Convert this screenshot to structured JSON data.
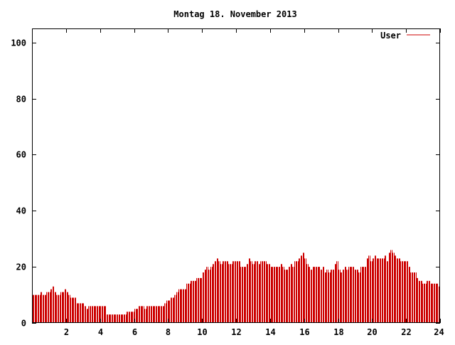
{
  "chart_data": {
    "type": "bar",
    "title": "Montag 18. November 2013",
    "xlabel": "",
    "ylabel": "",
    "xlim": [
      0,
      24
    ],
    "ylim": [
      0,
      105
    ],
    "x_ticks": [
      2,
      4,
      6,
      8,
      10,
      12,
      14,
      16,
      18,
      20,
      22,
      24
    ],
    "y_ticks": [
      0,
      20,
      40,
      60,
      80,
      100
    ],
    "grid": false,
    "legend_position": "top-right",
    "series": [
      {
        "name": "User",
        "color": "#cc0000",
        "values": [
          10,
          10,
          10,
          10,
          10,
          10,
          10,
          10,
          11,
          11,
          10,
          10,
          10,
          10,
          11,
          11,
          11,
          11,
          12,
          12,
          13,
          13,
          11,
          11,
          10,
          10,
          10,
          10,
          11,
          11,
          11,
          11,
          12,
          12,
          11,
          11,
          10,
          10,
          9,
          9,
          9,
          9,
          9,
          9,
          7,
          7,
          7,
          7,
          7,
          7,
          7,
          7,
          6,
          6,
          5,
          5,
          6,
          6,
          6,
          6,
          6,
          6,
          6,
          6,
          6,
          6,
          6,
          6,
          6,
          6,
          6,
          6,
          6,
          6,
          3,
          3,
          3,
          3,
          3,
          3,
          3,
          3,
          3,
          3,
          3,
          3,
          3,
          3,
          3,
          3,
          3,
          3,
          3,
          3,
          4,
          4,
          4,
          4,
          4,
          4,
          4,
          4,
          5,
          5,
          5,
          5,
          6,
          6,
          6,
          6,
          6,
          6,
          5,
          5,
          6,
          6,
          6,
          6,
          6,
          6,
          6,
          6,
          6,
          6,
          6,
          6,
          6,
          6,
          6,
          6,
          6,
          6,
          7,
          7,
          8,
          8,
          8,
          8,
          9,
          9,
          9,
          9,
          10,
          10,
          11,
          11,
          12,
          12,
          12,
          12,
          12,
          12,
          12,
          12,
          14,
          14,
          14,
          14,
          15,
          15,
          15,
          15,
          15,
          15,
          16,
          16,
          16,
          16,
          16,
          16,
          18,
          18,
          19,
          19,
          20,
          20,
          19,
          19,
          20,
          20,
          21,
          21,
          22,
          22,
          23,
          23,
          22,
          22,
          21,
          21,
          22,
          22,
          22,
          22,
          22,
          22,
          21,
          21,
          21,
          21,
          22,
          22,
          22,
          22,
          22,
          22,
          22,
          22,
          20,
          20,
          20,
          20,
          20,
          20,
          21,
          21,
          23,
          23,
          22,
          22,
          21,
          21,
          22,
          22,
          22,
          22,
          21,
          21,
          22,
          22,
          22,
          22,
          22,
          22,
          21,
          21,
          21,
          21,
          20,
          20,
          20,
          20,
          20,
          20,
          20,
          20,
          20,
          20,
          21,
          21,
          20,
          20,
          19,
          19,
          19,
          19,
          20,
          20,
          21,
          21,
          20,
          20,
          22,
          22,
          22,
          22,
          23,
          23,
          24,
          24,
          25,
          25,
          23,
          23,
          21,
          21,
          20,
          20,
          19,
          19,
          20,
          20,
          20,
          20,
          20,
          20,
          20,
          20,
          19,
          19,
          20,
          20,
          18,
          18,
          19,
          19,
          18,
          18,
          19,
          19,
          19,
          19,
          21,
          21,
          22,
          22,
          19,
          19,
          18,
          18,
          19,
          19,
          20,
          20,
          19,
          19,
          20,
          20,
          20,
          20,
          20,
          20,
          19,
          19,
          19,
          19,
          18,
          18,
          20,
          20,
          20,
          20,
          20,
          20,
          23,
          23,
          24,
          24,
          22,
          22,
          23,
          23,
          24,
          24,
          23,
          23,
          23,
          23,
          23,
          23,
          23,
          23,
          24,
          24,
          22,
          22,
          25,
          25,
          26,
          26,
          25,
          25,
          24,
          24,
          23,
          23,
          23,
          23,
          22,
          22,
          22,
          22,
          22,
          22,
          22,
          22,
          20,
          20,
          18,
          18,
          18,
          18,
          18,
          18,
          16,
          16,
          15,
          15,
          15,
          15,
          14,
          14,
          14,
          14,
          15,
          15,
          15,
          15,
          14,
          14,
          14,
          14,
          14,
          14,
          14,
          14,
          13,
          13
        ]
      }
    ]
  }
}
